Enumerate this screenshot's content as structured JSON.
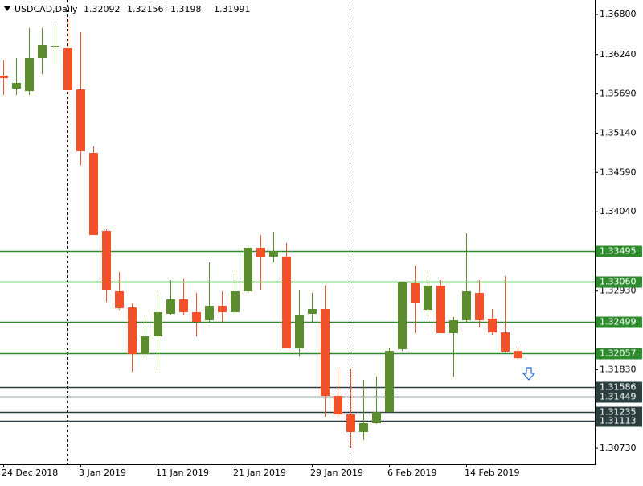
{
  "chart_data": {
    "type": "candlestick",
    "title": "USDCAD,Daily",
    "header_values": [
      1.32092,
      1.32156,
      1.3198,
      1.31991
    ],
    "categories": [
      "24 Dec 2018",
      null,
      null,
      null,
      null,
      null,
      "3 Jan 2019",
      null,
      null,
      null,
      null,
      null,
      "11 Jan 2019",
      null,
      null,
      null,
      null,
      null,
      "21 Jan 2019",
      null,
      null,
      null,
      null,
      null,
      "29 Jan 2019",
      null,
      null,
      null,
      null,
      null,
      "6 Feb 2019",
      null,
      null,
      null,
      null,
      null,
      "14 Feb 2019",
      null,
      null,
      null,
      null
    ],
    "open": [
      1.35944,
      1.35764,
      1.3573,
      1.36192,
      1.3636,
      1.36327,
      1.35753,
      1.34863,
      1.33771,
      1.32927,
      1.32701,
      1.32048,
      1.32296,
      1.32611,
      1.32814,
      1.32634,
      1.32521,
      1.32724,
      1.32634,
      1.32927,
      1.33535,
      1.33412,
      1.33412,
      1.32127,
      1.32611,
      1.32679,
      1.31463,
      1.31204,
      1.30956,
      1.3108,
      1.31236,
      1.32116,
      1.3304,
      1.32668,
      1.33006,
      1.32341,
      1.32521,
      1.32904,
      1.32544,
      1.32352,
      1.32092
    ],
    "high": [
      1.36158,
      1.36192,
      1.36609,
      1.36609,
      1.36665,
      1.36755,
      1.36552,
      1.34953,
      1.33794,
      1.33197,
      1.32758,
      1.32566,
      1.32927,
      1.33085,
      1.33096,
      1.32904,
      1.33332,
      1.32927,
      1.33175,
      1.33569,
      1.33715,
      1.3376,
      1.33602,
      1.32949,
      1.32904,
      1.33006,
      1.31846,
      1.31846,
      1.31688,
      1.31733,
      1.32138,
      1.33062,
      1.33287,
      1.33197,
      1.33085,
      1.32566,
      1.33737,
      1.33085,
      1.32679,
      1.33141,
      1.32156
    ],
    "low": [
      1.35674,
      1.35674,
      1.35674,
      1.35967,
      1.36102,
      1.35708,
      1.34694,
      1.33715,
      1.3278,
      1.32668,
      1.318,
      1.31992,
      1.31823,
      1.32589,
      1.32589,
      1.32296,
      1.32476,
      1.32499,
      1.32589,
      1.32893,
      1.32949,
      1.33332,
      1.32127,
      1.32014,
      1.32499,
      1.3117,
      1.3117,
      1.30731,
      1.30844,
      1.31069,
      1.31236,
      1.32093,
      1.32341,
      1.32578,
      1.32341,
      1.31733,
      1.32499,
      1.3242,
      1.32318,
      1.3207,
      1.3198
    ],
    "close": [
      1.35911,
      1.35843,
      1.36192,
      1.36372,
      1.3636,
      1.35742,
      1.34886,
      1.33715,
      1.32949,
      1.3269,
      1.32048,
      1.32296,
      1.32634,
      1.32814,
      1.32634,
      1.32499,
      1.32724,
      1.32634,
      1.32927,
      1.33535,
      1.334,
      1.3349,
      1.32127,
      1.32589,
      1.32679,
      1.31463,
      1.31204,
      1.30956,
      1.3108,
      1.31236,
      1.32093,
      1.33062,
      1.32769,
      1.33006,
      1.32341,
      1.32521,
      1.32927,
      1.32521,
      1.32352,
      1.32082,
      1.31991
    ],
    "up_color": "#5b8c2e",
    "down_color": "#f4502a",
    "ylim": [
      1.30506,
      1.37003
    ],
    "yticks": [
      {
        "value": 1.368,
        "label": "1.36800"
      },
      {
        "value": 1.3624,
        "label": "1.36240"
      },
      {
        "value": 1.3569,
        "label": "1.35690"
      },
      {
        "value": 1.3514,
        "label": "1.35140"
      },
      {
        "value": 1.3459,
        "label": "1.34590"
      },
      {
        "value": 1.3404,
        "label": "1.34040"
      },
      {
        "value": 1.3293,
        "label": "1.32930"
      },
      {
        "value": 1.3183,
        "label": "1.31830"
      },
      {
        "value": 1.3073,
        "label": "1.30730"
      }
    ],
    "levels": [
      {
        "value": 1.33495,
        "label": "1.33495",
        "color": "#2e8b2e"
      },
      {
        "value": 1.3306,
        "label": "1.33060",
        "color": "#2e8b2e"
      },
      {
        "value": 1.32499,
        "label": "1.32499",
        "color": "#2e8b2e"
      },
      {
        "value": 1.32057,
        "label": "1.32057",
        "color": "#2e8b2e"
      },
      {
        "value": 1.31586,
        "label": "1.31586",
        "color": "#2b3f3f"
      },
      {
        "value": 1.31449,
        "label": "1.31449",
        "color": "#2b3f3f"
      },
      {
        "value": 1.31235,
        "label": "1.31235",
        "color": "#2b3f3f"
      },
      {
        "value": 1.31113,
        "label": "1.31113",
        "color": "#2b3f3f"
      }
    ]
  }
}
